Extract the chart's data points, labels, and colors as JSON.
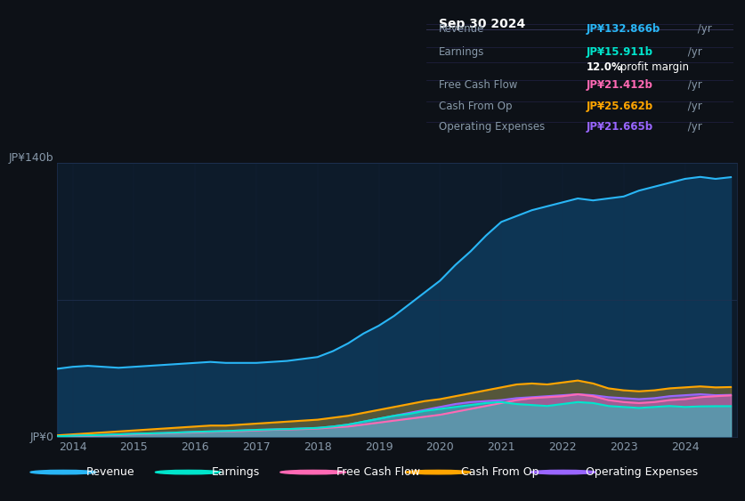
{
  "bg_color": "#0d1117",
  "plot_bg_color": "#0d1b2a",
  "grid_color": "#1e3050",
  "title_date": "Sep 30 2024",
  "table_data": {
    "Revenue": {
      "value": "JP¥132.866b /yr",
      "color": "#00aaff"
    },
    "Earnings": {
      "value": "JP¥15.911b /yr",
      "color": "#00ffcc"
    },
    "margin": {
      "value": "12.0% profit margin",
      "color": "#ffffff"
    },
    "Free Cash Flow": {
      "value": "JP¥21.412b /yr",
      "color": "#ff69b4"
    },
    "Cash From Op": {
      "value": "JP¥25.662b /yr",
      "color": "#ffa500"
    },
    "Operating Expenses": {
      "value": "JP¥21.665b /yr",
      "color": "#9966ff"
    }
  },
  "years": [
    2013.75,
    2014.0,
    2014.25,
    2014.5,
    2014.75,
    2015.0,
    2015.25,
    2015.5,
    2015.75,
    2016.0,
    2016.25,
    2016.5,
    2016.75,
    2017.0,
    2017.25,
    2017.5,
    2017.75,
    2018.0,
    2018.25,
    2018.5,
    2018.75,
    2019.0,
    2019.25,
    2019.5,
    2019.75,
    2020.0,
    2020.25,
    2020.5,
    2020.75,
    2021.0,
    2021.25,
    2021.5,
    2021.75,
    2022.0,
    2022.25,
    2022.5,
    2022.75,
    2023.0,
    2023.25,
    2023.5,
    2023.75,
    2024.0,
    2024.25,
    2024.5,
    2024.75
  ],
  "revenue": [
    35,
    36,
    36.5,
    36,
    35.5,
    36,
    36.5,
    37,
    37.5,
    38,
    38.5,
    38,
    38,
    38,
    38.5,
    39,
    40,
    41,
    44,
    48,
    53,
    57,
    62,
    68,
    74,
    80,
    88,
    95,
    103,
    110,
    113,
    116,
    118,
    120,
    122,
    121,
    122,
    123,
    126,
    128,
    130,
    132,
    133,
    132,
    132.866
  ],
  "earnings": [
    0.5,
    0.8,
    1.0,
    1.2,
    1.5,
    1.8,
    2.0,
    2.2,
    2.5,
    2.8,
    3.0,
    3.2,
    3.5,
    3.8,
    4.0,
    4.2,
    4.5,
    4.8,
    5.5,
    6.5,
    8.0,
    9.5,
    11.0,
    12.0,
    13.5,
    14.5,
    15.5,
    16.5,
    17.5,
    18.0,
    17.0,
    16.5,
    16.0,
    17.0,
    18.0,
    17.5,
    16.0,
    15.5,
    15.0,
    15.5,
    16.0,
    15.5,
    15.8,
    15.9,
    15.911
  ],
  "free_cash_flow": [
    0.3,
    0.5,
    0.8,
    1.0,
    1.2,
    1.5,
    1.8,
    2.0,
    2.3,
    2.5,
    2.8,
    3.0,
    3.2,
    3.5,
    3.8,
    4.0,
    4.2,
    4.5,
    5.0,
    5.5,
    6.5,
    7.5,
    8.5,
    9.5,
    10.5,
    11.5,
    13.0,
    14.5,
    16.0,
    17.5,
    19.0,
    20.0,
    20.5,
    21.0,
    22.0,
    21.0,
    19.0,
    18.0,
    17.5,
    18.0,
    19.0,
    19.5,
    20.5,
    21.0,
    21.412
  ],
  "cash_from_op": [
    1.0,
    1.5,
    2.0,
    2.5,
    3.0,
    3.5,
    4.0,
    4.5,
    5.0,
    5.5,
    6.0,
    6.0,
    6.5,
    7.0,
    7.5,
    8.0,
    8.5,
    9.0,
    10.0,
    11.0,
    12.5,
    14.0,
    15.5,
    17.0,
    18.5,
    19.5,
    21.0,
    22.5,
    24.0,
    25.5,
    27.0,
    27.5,
    27.0,
    28.0,
    29.0,
    27.5,
    25.0,
    24.0,
    23.5,
    24.0,
    25.0,
    25.5,
    26.0,
    25.5,
    25.662
  ],
  "operating_expenses": [
    0.5,
    0.8,
    1.0,
    1.2,
    1.5,
    1.8,
    2.0,
    2.2,
    2.5,
    2.8,
    3.0,
    3.2,
    3.5,
    3.8,
    4.0,
    4.2,
    4.5,
    4.8,
    5.5,
    6.5,
    8.0,
    9.5,
    11.0,
    12.5,
    14.0,
    15.5,
    17.0,
    18.0,
    18.5,
    19.0,
    20.0,
    20.5,
    21.0,
    21.5,
    22.0,
    21.5,
    20.5,
    20.0,
    19.5,
    20.0,
    21.0,
    21.5,
    22.0,
    21.5,
    21.665
  ],
  "ylim": [
    0,
    140
  ],
  "yticks": [
    0,
    70,
    140
  ],
  "ytick_labels": [
    "JP¥0",
    "",
    "JP¥140b"
  ],
  "xticks": [
    2014,
    2015,
    2016,
    2017,
    2018,
    2019,
    2020,
    2021,
    2022,
    2023,
    2024
  ],
  "revenue_color": "#29b6f6",
  "earnings_color": "#00e5cc",
  "fcf_color": "#ff69b4",
  "cashop_color": "#ffa500",
  "opex_color": "#9966ff",
  "revenue_fill": "#0d3a5c",
  "legend_bg": "#1a1a2e"
}
